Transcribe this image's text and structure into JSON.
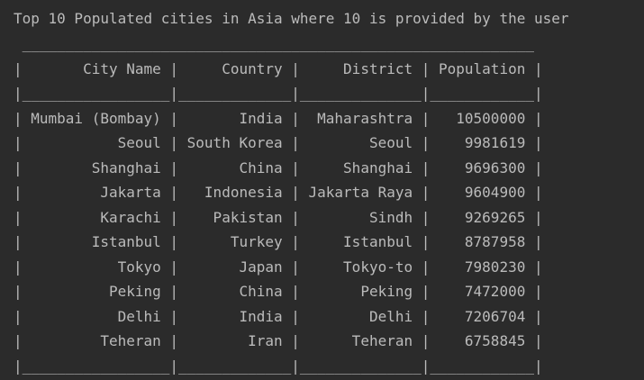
{
  "console": {
    "heading": "Top 10 Populated cities in Asia where 10 is provided by the user",
    "table_lines": [
      " ___________________________________________________________",
      "|       City Name |     Country |     District | Population |",
      "|_________________|_____________|______________|____________|",
      "| Mumbai (Bombay) |       India |  Maharashtra |   10500000 |",
      "|           Seoul | South Korea |        Seoul |    9981619 |",
      "|        Shanghai |       China |     Shanghai |    9696300 |",
      "|         Jakarta |   Indonesia | Jakarta Raya |    9604900 |",
      "|         Karachi |    Pakistan |        Sindh |    9269265 |",
      "|        Istanbul |      Turkey |     Istanbul |    8787958 |",
      "|           Tokyo |       Japan |     Tokyo-to |    7980230 |",
      "|          Peking |       China |       Peking |    7472000 |",
      "|           Delhi |       India |        Delhi |    7206704 |",
      "|         Teheran |        Iran |      Teheran |    6758845 |",
      "|_________________|_____________|______________|____________|"
    ]
  },
  "colors": {
    "background": "#2b2b2b",
    "text": "#bbbbbb"
  }
}
